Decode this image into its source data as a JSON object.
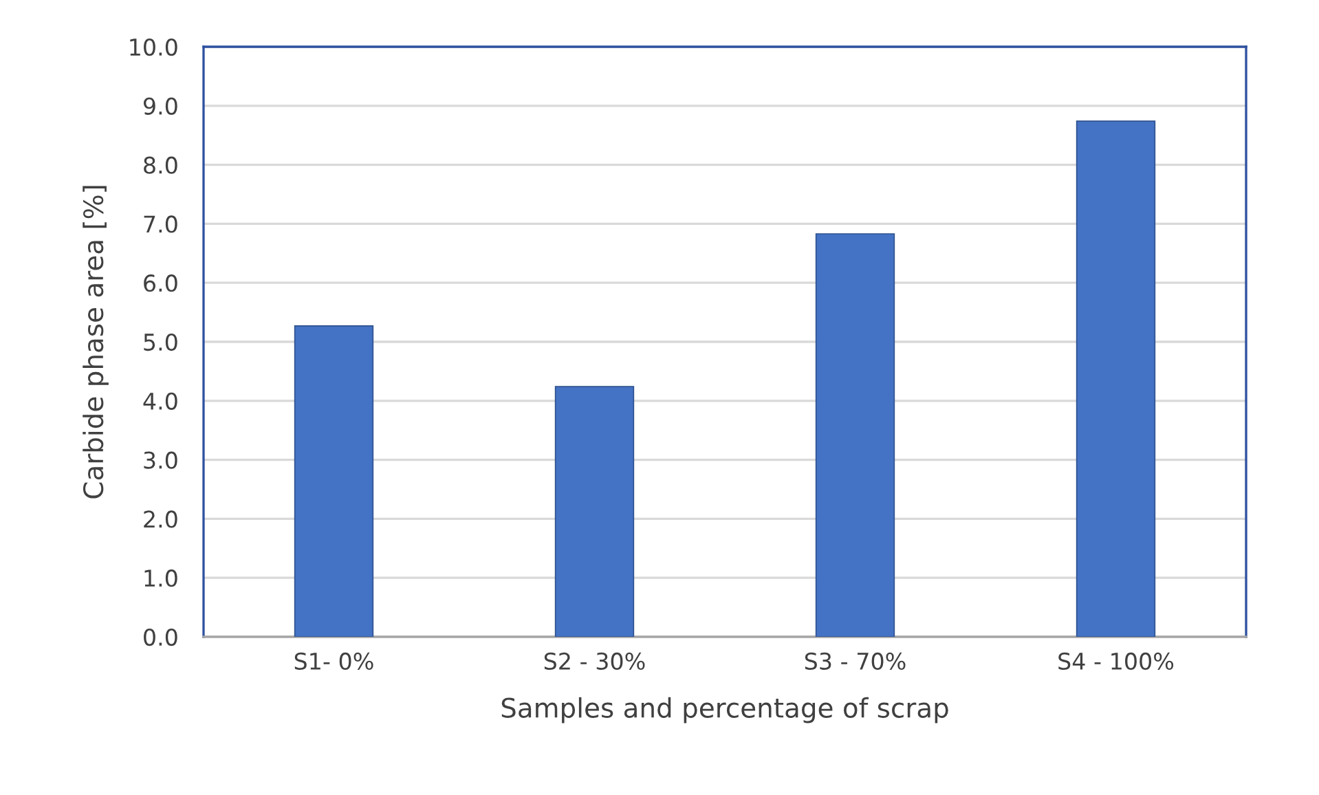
{
  "chart_data": {
    "type": "bar",
    "xlabel": "Samples and percentage of scrap",
    "ylabel": "Carbide phase area [%]",
    "categories": [
      "S1- 0%",
      "S2 - 30%",
      "S3 - 70%",
      "S4 - 100%"
    ],
    "values": [
      5.27,
      4.24,
      6.83,
      8.74
    ],
    "color": "#4472c4",
    "ylim": [
      0,
      10
    ],
    "yticks": [
      {
        "value": 0,
        "label": "0.0"
      },
      {
        "value": 1,
        "label": "1.0"
      },
      {
        "value": 2,
        "label": "2.0"
      },
      {
        "value": 3,
        "label": "3.0"
      },
      {
        "value": 4,
        "label": "4.0"
      },
      {
        "value": 5,
        "label": "5.0"
      },
      {
        "value": 6,
        "label": "6.0"
      },
      {
        "value": 7,
        "label": "7.0"
      },
      {
        "value": 8,
        "label": "8.0"
      },
      {
        "value": 9,
        "label": "9.0"
      },
      {
        "value": 10,
        "label": "10.0"
      }
    ],
    "grid": "y",
    "legend": false
  }
}
